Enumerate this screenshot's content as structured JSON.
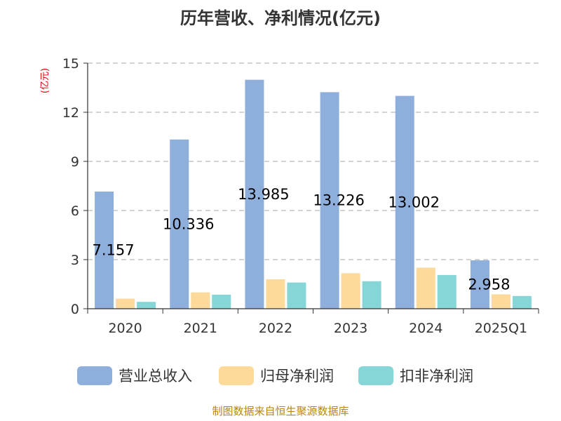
{
  "chart_data": {
    "type": "bar",
    "title": "历年营收、净利情况(亿元)",
    "ylabel": "(亿元)",
    "xlabel": "",
    "categories": [
      "2020",
      "2021",
      "2022",
      "2023",
      "2024",
      "2025Q1"
    ],
    "ylim": [
      0,
      15
    ],
    "yticks": [
      "0",
      "3",
      "6",
      "9",
      "12",
      "15"
    ],
    "grid": true,
    "legend_position": "bottom",
    "series": [
      {
        "name": "营业总收入",
        "color": "#8eaedb",
        "values": [
          7.157,
          10.336,
          13.985,
          13.226,
          13.002,
          2.958
        ]
      },
      {
        "name": "归母净利润",
        "color": "#fdd99a",
        "values": [
          0.62,
          1.0,
          1.8,
          2.17,
          2.51,
          0.88
        ]
      },
      {
        "name": "扣非净利润",
        "color": "#86d6d8",
        "values": [
          0.42,
          0.86,
          1.6,
          1.68,
          2.06,
          0.78
        ]
      }
    ],
    "data_labels": [
      "7.157",
      "10.336",
      "13.985",
      "13.226",
      "13.002",
      "2.958"
    ]
  },
  "source": "制图数据来自恒生聚源数据库"
}
